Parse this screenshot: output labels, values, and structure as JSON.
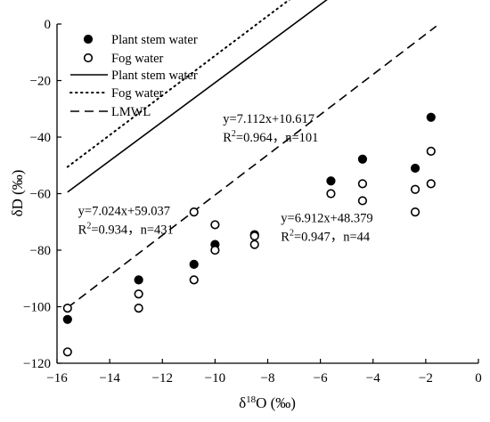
{
  "chart_data": {
    "type": "scatter",
    "title": "",
    "xlabel": "δ18O (‰)",
    "ylabel": "δD (‰)",
    "xlim": [
      -16,
      0
    ],
    "ylim": [
      -120,
      0
    ],
    "x_ticks": [
      -16,
      -14,
      -12,
      -10,
      -8,
      -6,
      -4,
      -2,
      0
    ],
    "y_ticks": [
      0,
      -20,
      -40,
      -60,
      -80,
      -100,
      -120
    ],
    "grid": false,
    "legend_position": "top-left",
    "series": [
      {
        "name": "Plant stem water",
        "kind": "points",
        "marker": "filled-circle",
        "color": "#000000",
        "points": [
          [
            -15.6,
            -104.5
          ],
          [
            -12.9,
            -90.5
          ],
          [
            -10.8,
            -85.0
          ],
          [
            -10.0,
            -78.0
          ],
          [
            -8.5,
            -74.5
          ],
          [
            -5.6,
            -55.5
          ],
          [
            -4.4,
            -47.8
          ],
          [
            -2.4,
            -51.0
          ],
          [
            -1.8,
            -33.0
          ]
        ]
      },
      {
        "name": "Fog water",
        "kind": "points",
        "marker": "open-circle",
        "color": "#000000",
        "points": [
          [
            -15.6,
            -100.5
          ],
          [
            -15.6,
            -116.0
          ],
          [
            -12.9,
            -95.5
          ],
          [
            -12.9,
            -100.5
          ],
          [
            -10.8,
            -66.5
          ],
          [
            -10.8,
            -90.5
          ],
          [
            -10.0,
            -71.0
          ],
          [
            -10.0,
            -80.0
          ],
          [
            -8.5,
            -78.0
          ],
          [
            -8.5,
            -75.0
          ],
          [
            -5.6,
            -60.0
          ],
          [
            -4.4,
            -56.5
          ],
          [
            -4.4,
            -62.5
          ],
          [
            -2.4,
            -58.5
          ],
          [
            -2.4,
            -66.5
          ],
          [
            -1.8,
            -45.0
          ],
          [
            -1.8,
            -56.5
          ]
        ]
      },
      {
        "name": "Plant stem water",
        "kind": "line",
        "dash": "solid",
        "slope": 6.912,
        "intercept": 48.379,
        "x_range": [
          -15.6,
          -1.6
        ]
      },
      {
        "name": "Fog water",
        "kind": "line",
        "dash": "dotted",
        "slope": 7.024,
        "intercept": 59.037,
        "x_range": [
          -15.6,
          -1.6
        ]
      },
      {
        "name": "LMWL",
        "kind": "line",
        "dash": "dashed",
        "slope": 7.112,
        "intercept": 10.617,
        "x_range": [
          -15.6,
          -1.6
        ]
      }
    ],
    "annotations": [
      {
        "line1": "y=7.112x+10.617",
        "r2_prefix": "R",
        "r2_rest": "=0.964，n=101",
        "anchor_x": -9.7,
        "anchor_y": -35.0
      },
      {
        "line1": "y=7.024x+59.037",
        "r2_prefix": "R",
        "r2_rest": "=0.934，n=431",
        "anchor_x": -15.2,
        "anchor_y": -67.5
      },
      {
        "line1": "y=6.912x+48.379",
        "r2_prefix": "R",
        "r2_rest": "=0.947，n=44",
        "anchor_x": -7.5,
        "anchor_y": -70.0
      }
    ]
  }
}
